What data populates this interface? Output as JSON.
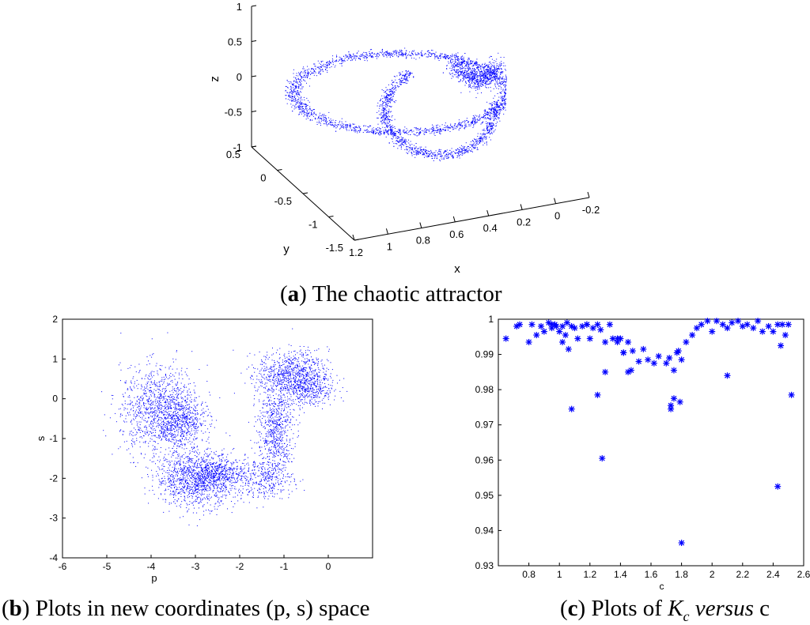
{
  "captions": {
    "a": {
      "letter": "a",
      "text": " The chaotic attractor"
    },
    "b": {
      "letter": "b",
      "text": " Plots in new coordinates (p, s) space"
    },
    "c": {
      "letter": "c",
      "pre": " Plots of ",
      "k": "K",
      "sub": "c",
      "versus": "versus",
      "post": " c"
    }
  },
  "colors": {
    "series": "#0000ff",
    "axis": "#000000",
    "background": "#ffffff"
  },
  "chart_data": [
    {
      "type": "scatter",
      "projection": "3d",
      "xlabel": "x",
      "ylabel": "y",
      "zlabel": "z",
      "xlim": [
        -0.2,
        1.2
      ],
      "ylim": [
        -1.5,
        0.5
      ],
      "zlim": [
        -1,
        1
      ],
      "xticks": [
        "1.2",
        "1",
        "0.8",
        "0.6",
        "0.4",
        "0.2",
        "0",
        "-0.2"
      ],
      "yticks": [
        "0.5",
        "0",
        "-0.5",
        "-1",
        "-1.5"
      ],
      "zticks": [
        "1",
        "0.5",
        "0",
        "-0.5",
        "-1"
      ],
      "marker": "dot",
      "generator": {
        "kind": "two-lobe attractor",
        "points": 4200
      }
    },
    {
      "type": "scatter",
      "xlabel": "p",
      "ylabel": "s",
      "xlim": [
        -6,
        1
      ],
      "ylim": [
        -4,
        2
      ],
      "xticks": [
        "-6",
        "-5",
        "-4",
        "-3",
        "-2",
        "-1",
        "0"
      ],
      "yticks": [
        "2",
        "1",
        "0",
        "-1",
        "-2",
        "-3",
        "-4"
      ],
      "marker": "dot",
      "clusters": [
        {
          "cx": -3.8,
          "cy": -0.3,
          "sx": 0.45,
          "sy": 0.55,
          "n": 1200
        },
        {
          "cx": -3.3,
          "cy": -0.6,
          "sx": 0.25,
          "sy": 0.35,
          "n": 400
        },
        {
          "cx": -3.0,
          "cy": -2.0,
          "sx": 0.45,
          "sy": 0.35,
          "n": 1100
        },
        {
          "cx": -2.5,
          "cy": -1.9,
          "sx": 0.3,
          "sy": 0.2,
          "n": 400
        },
        {
          "cx": -1.5,
          "cy": -2.0,
          "sx": 0.35,
          "sy": 0.25,
          "n": 350
        },
        {
          "cx": -1.2,
          "cy": -0.8,
          "sx": 0.2,
          "sy": 0.6,
          "n": 700
        },
        {
          "cx": -0.8,
          "cy": 0.6,
          "sx": 0.4,
          "sy": 0.3,
          "n": 900
        },
        {
          "cx": -0.4,
          "cy": 0.2,
          "sx": 0.25,
          "sy": 0.2,
          "n": 250
        }
      ]
    },
    {
      "type": "scatter",
      "xlabel": "c",
      "ylabel": "",
      "xlim": [
        0.6,
        2.6
      ],
      "ylim": [
        0.93,
        1.0
      ],
      "xticks": [
        "0.8",
        "1",
        "1.2",
        "1.4",
        "1.6",
        "1.8",
        "2",
        "2.2",
        "2.4",
        "2.6"
      ],
      "yticks": [
        "1",
        "0.99",
        "0.98",
        "0.97",
        "0.96",
        "0.95",
        "0.94",
        "0.93"
      ],
      "marker": "star",
      "x": [
        0.65,
        0.72,
        0.74,
        0.8,
        0.82,
        0.85,
        0.88,
        0.9,
        0.93,
        0.95,
        0.97,
        0.98,
        1.0,
        1.02,
        1.04,
        1.05,
        1.06,
        1.08,
        1.1,
        1.12,
        1.15,
        1.18,
        1.2,
        1.22,
        1.25,
        1.27,
        1.3,
        1.33,
        1.35,
        1.38,
        1.4,
        1.42,
        1.45,
        1.48,
        1.52,
        1.55,
        1.58,
        1.62,
        1.65,
        1.7,
        1.72,
        1.75,
        1.78,
        1.8,
        1.83,
        1.87,
        1.9,
        1.93,
        1.97,
        2.0,
        2.03,
        2.07,
        2.1,
        2.13,
        2.17,
        2.2,
        2.23,
        2.27,
        2.3,
        2.33,
        2.37,
        2.4,
        2.43,
        2.46,
        2.5,
        1.08,
        1.25,
        1.28,
        1.73,
        1.73,
        1.75,
        1.77,
        1.79,
        2.1,
        2.43,
        2.52,
        1.8,
        1.3,
        1.45,
        1.47,
        1.38,
        1.42,
        0.95,
        1.02,
        1.18,
        2.45,
        2.48
      ],
      "y": [
        0.9945,
        0.998,
        0.9985,
        0.9935,
        0.9985,
        0.9955,
        0.998,
        0.9965,
        0.999,
        0.9975,
        0.9985,
        0.998,
        0.9965,
        0.998,
        0.9955,
        0.999,
        0.9915,
        0.998,
        0.9975,
        0.9945,
        0.998,
        0.9985,
        0.9945,
        0.9975,
        0.9985,
        0.997,
        0.9935,
        0.9985,
        0.9945,
        0.9935,
        0.9945,
        0.9905,
        0.9935,
        0.991,
        0.988,
        0.9915,
        0.9885,
        0.9875,
        0.9895,
        0.9875,
        0.989,
        0.9855,
        0.991,
        0.9885,
        0.9935,
        0.9955,
        0.9975,
        0.9985,
        0.9995,
        0.9965,
        0.9995,
        0.9985,
        0.9975,
        0.999,
        0.9995,
        0.998,
        0.9985,
        0.9975,
        0.9995,
        0.9965,
        0.998,
        0.9965,
        0.9985,
        0.9985,
        0.9985,
        0.9745,
        0.9785,
        0.9605,
        0.9745,
        0.9755,
        0.9775,
        0.9905,
        0.9765,
        0.984,
        0.9525,
        0.9785,
        0.9365,
        0.985,
        0.985,
        0.9855,
        0.9945,
        0.9905,
        0.9985,
        0.9935,
        0.9985,
        0.9925,
        0.9955
      ]
    }
  ]
}
